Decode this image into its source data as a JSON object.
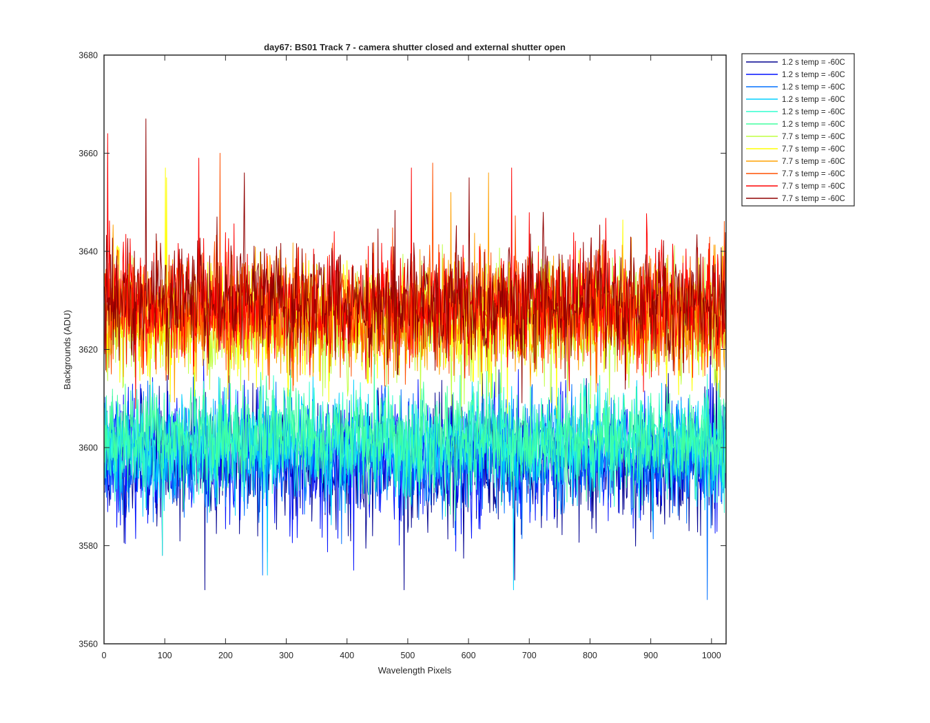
{
  "chart_data": {
    "type": "line",
    "title": "day67: BS01  Track 7 - camera shutter closed and external shutter open",
    "xlabel": "Wavelength Pixels",
    "ylabel": "Backgrounds (ADU)",
    "xlim": [
      0,
      1024
    ],
    "ylim": [
      3560,
      3680
    ],
    "xticks": [
      0,
      100,
      200,
      300,
      400,
      500,
      600,
      700,
      800,
      900,
      1000
    ],
    "yticks": [
      3560,
      3580,
      3600,
      3620,
      3640,
      3660,
      3680
    ],
    "grid": false,
    "legend_position": "outside-top-right",
    "series": [
      {
        "name": "1.2 s temp = -60C",
        "color": "#00008f",
        "mean": 3597,
        "spread": 6.5,
        "seed": 11,
        "spikes": [
          [
            165,
            3571
          ],
          [
            493,
            3571
          ],
          [
            675,
            3573
          ]
        ]
      },
      {
        "name": "1.2 s temp = -60C",
        "color": "#0010ff",
        "mean": 3598,
        "spread": 6.5,
        "seed": 23,
        "spikes": [
          [
            95,
            3578
          ],
          [
            410,
            3575
          ]
        ]
      },
      {
        "name": "1.2 s temp = -60C",
        "color": "#0070ff",
        "mean": 3599,
        "spread": 6.0,
        "seed": 37,
        "spikes": [
          [
            992,
            3569
          ],
          [
            260,
            3574
          ]
        ]
      },
      {
        "name": "1.2 s temp = -60C",
        "color": "#00cfff",
        "mean": 3600,
        "spread": 5.5,
        "seed": 41,
        "spikes": [
          [
            673,
            3571
          ],
          [
            268,
            3574
          ]
        ]
      },
      {
        "name": "1.2 s temp = -60C",
        "color": "#30ffcf",
        "mean": 3601,
        "spread": 5.0,
        "seed": 53,
        "spikes": [
          [
            95,
            3578
          ]
        ]
      },
      {
        "name": "1.2 s temp = -60C",
        "color": "#40ff9f",
        "mean": 3602,
        "spread": 5.0,
        "seed": 67,
        "spikes": []
      },
      {
        "name": "7.7 s temp = -60C",
        "color": "#bfff40",
        "mean": 3625,
        "spread": 6.0,
        "seed": 71,
        "spikes": []
      },
      {
        "name": "7.7 s temp = -60C",
        "color": "#ffff00",
        "mean": 3626,
        "spread": 6.0,
        "seed": 83,
        "spikes": [
          [
            100,
            3657
          ],
          [
            102,
            3655
          ]
        ]
      },
      {
        "name": "7.7 s temp = -60C",
        "color": "#ffa000",
        "mean": 3627,
        "spread": 6.0,
        "seed": 97,
        "spikes": [
          [
            632,
            3656
          ],
          [
            570,
            3652
          ]
        ]
      },
      {
        "name": "7.7 s temp = -60C",
        "color": "#ff5000",
        "mean": 3628,
        "spread": 6.0,
        "seed": 101,
        "spikes": [
          [
            190,
            3660
          ],
          [
            540,
            3658
          ]
        ]
      },
      {
        "name": "7.7 s temp = -60C",
        "color": "#ff0000",
        "mean": 3629,
        "spread": 6.0,
        "seed": 113,
        "spikes": [
          [
            5,
            3664
          ],
          [
            155,
            3659
          ],
          [
            505,
            3657
          ],
          [
            670,
            3657
          ]
        ]
      },
      {
        "name": "7.7 s temp = -60C",
        "color": "#8f0000",
        "mean": 3630,
        "spread": 6.0,
        "seed": 127,
        "spikes": [
          [
            68,
            3667
          ],
          [
            230,
            3656
          ],
          [
            600,
            3655
          ]
        ]
      }
    ]
  }
}
